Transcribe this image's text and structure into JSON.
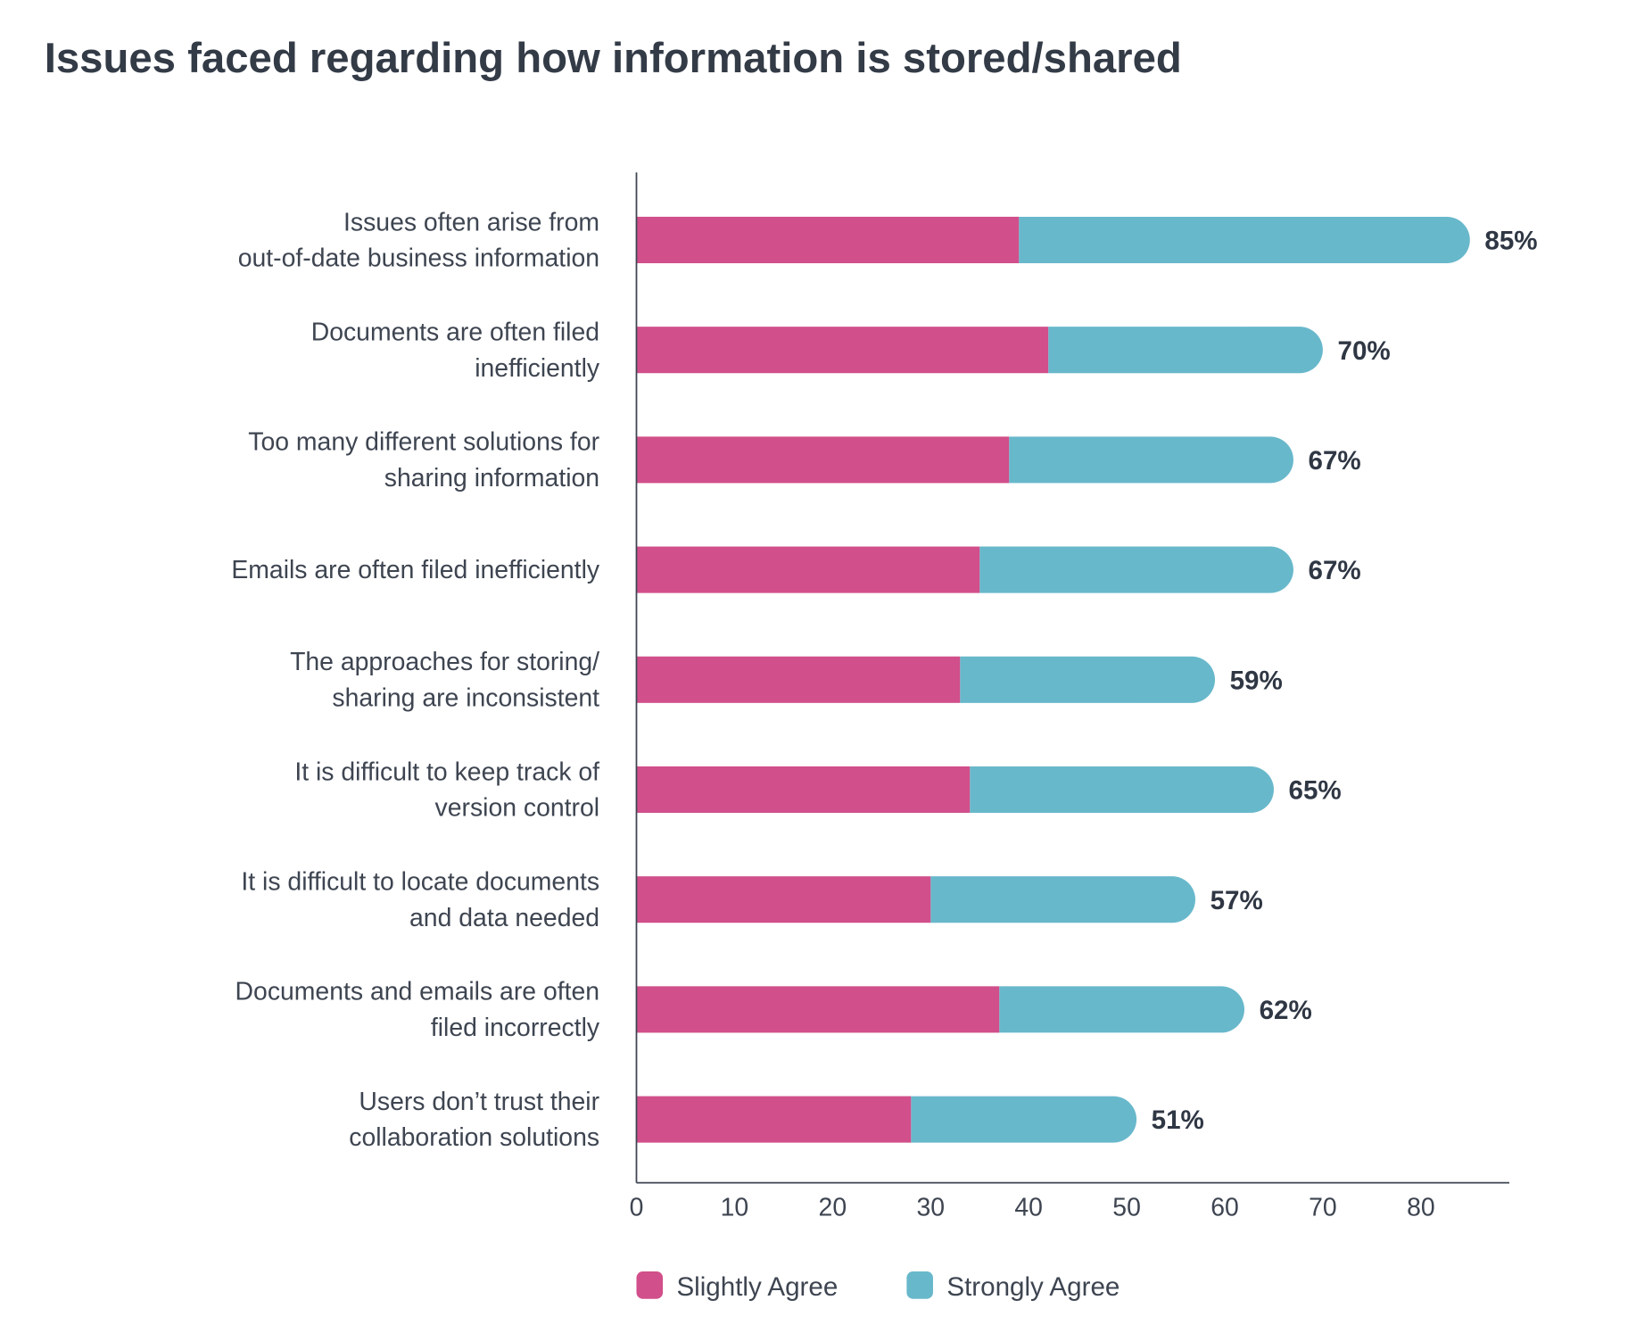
{
  "chart_data": {
    "type": "bar",
    "orientation": "horizontal",
    "stacked": true,
    "title": "Issues faced regarding how information is stored/shared",
    "xlabel": "",
    "ylabel": "",
    "xlim": [
      0,
      88
    ],
    "x_ticks": [
      0,
      10,
      20,
      30,
      40,
      50,
      60,
      70,
      80
    ],
    "grid": false,
    "legend_position": "bottom",
    "categories": [
      [
        "Issues often arise from",
        "out-of-date business information"
      ],
      [
        "Documents are often filed",
        "inefficiently"
      ],
      [
        "Too many different solutions for",
        "sharing information"
      ],
      [
        "Emails are often filed inefficiently"
      ],
      [
        "The approaches for storing/",
        "sharing are inconsistent"
      ],
      [
        "It is difficult to keep track of",
        "version control"
      ],
      [
        "It is difficult to locate documents",
        "and data needed"
      ],
      [
        "Documents and emails are often",
        "filed incorrectly"
      ],
      [
        "Users don’t trust their",
        "collaboration solutions"
      ]
    ],
    "series": [
      {
        "name": "Slightly Agree",
        "color": "#d14f8a",
        "values": [
          39,
          42,
          38,
          35,
          33,
          34,
          30,
          37,
          28
        ]
      },
      {
        "name": "Strongly Agree",
        "color": "#68b8cb",
        "values": [
          46,
          28,
          29,
          32,
          26,
          31,
          27,
          25,
          23
        ]
      }
    ],
    "total_labels": [
      "85%",
      "70%",
      "67%",
      "67%",
      "59%",
      "65%",
      "57%",
      "62%",
      "51%"
    ]
  }
}
